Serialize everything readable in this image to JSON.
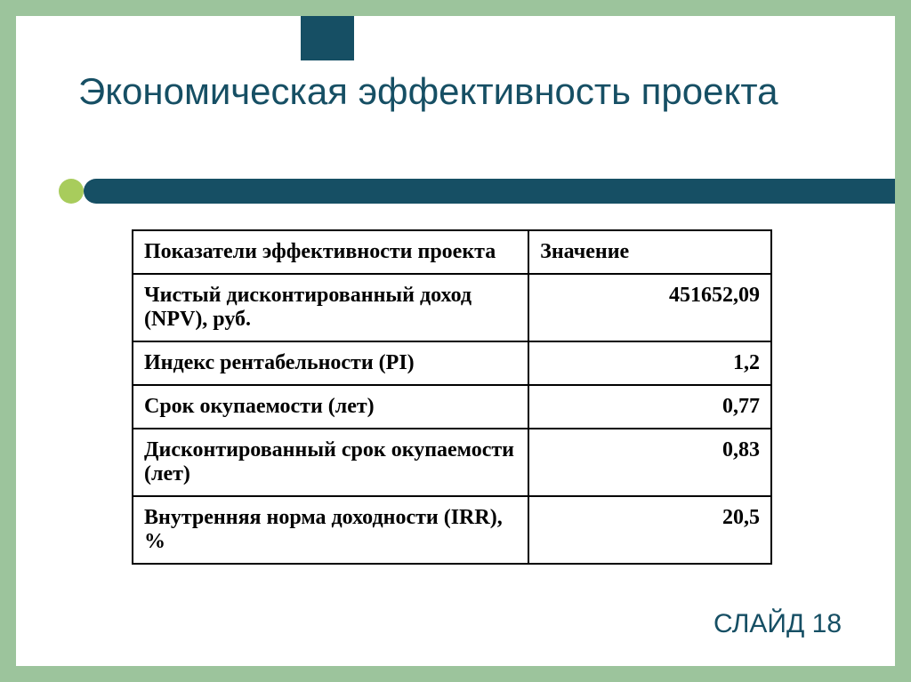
{
  "slide": {
    "title": "Экономическая эффективность проекта",
    "footer": "СЛАЙД 18"
  },
  "table": {
    "header": {
      "label": "Показатели эффективности проекта",
      "value": "Значение"
    },
    "rows": [
      {
        "label": "Чистый дисконтированный доход (NPV), руб.",
        "value": "451652,09"
      },
      {
        "label": "Индекс рентабельности (PI)",
        "value": "1,2"
      },
      {
        "label": "Срок окупаемости (лет)",
        "value": "0,77"
      },
      {
        "label": "Дисконтированный срок окупаемости (лет)",
        "value": "0,83"
      },
      {
        "label": "Внутренняя норма доходности (IRR), %",
        "value": "20,5"
      }
    ]
  },
  "colors": {
    "page_background": "#9cc49c",
    "slide_background": "#ffffff",
    "accent_dark": "#164f64",
    "accent_light": "#a8cc5c",
    "text_title": "#164f64",
    "table_border": "#000000",
    "table_text": "#000000"
  },
  "typography": {
    "title_fontsize": 42,
    "table_fontsize": 24,
    "footer_fontsize": 30,
    "table_fontfamily": "Times New Roman",
    "title_fontfamily": "Arial"
  },
  "layout": {
    "slide_width": 1024,
    "slide_height": 767,
    "slide_padding": 18,
    "table_col_widths": [
      "62%",
      "38%"
    ]
  }
}
